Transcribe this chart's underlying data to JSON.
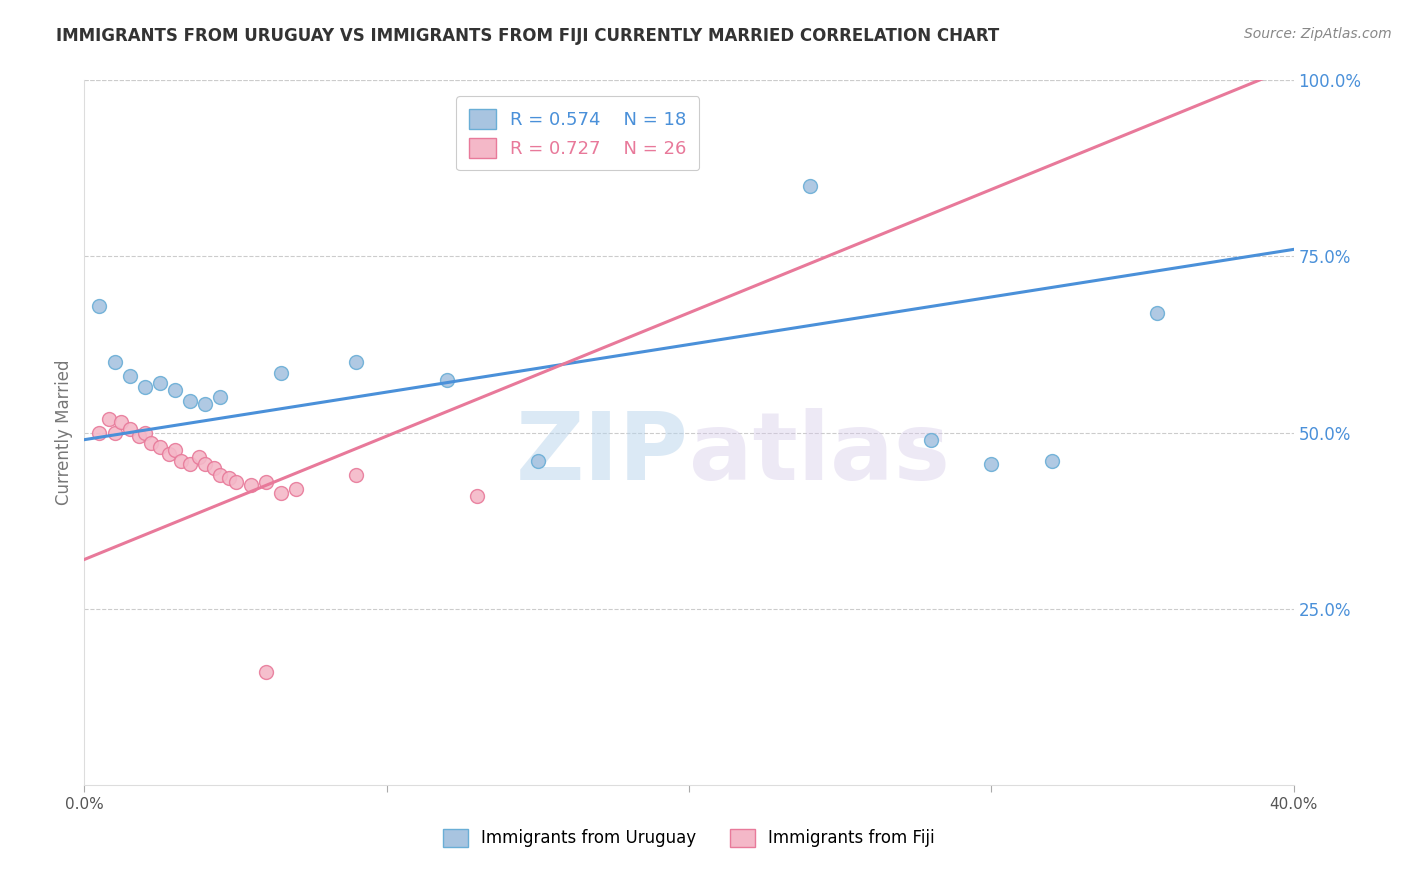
{
  "title": "IMMIGRANTS FROM URUGUAY VS IMMIGRANTS FROM FIJI CURRENTLY MARRIED CORRELATION CHART",
  "source_text": "Source: ZipAtlas.com",
  "ylabel": "Currently Married",
  "watermark_zip": "ZIP",
  "watermark_atlas": "atlas",
  "xlim": [
    0.0,
    0.4
  ],
  "ylim": [
    0.0,
    1.0
  ],
  "xticks": [
    0.0,
    0.1,
    0.2,
    0.3,
    0.4
  ],
  "xtick_labels": [
    "0.0%",
    "",
    "",
    "",
    "40.0%"
  ],
  "ytick_labels_right": [
    "100.0%",
    "75.0%",
    "50.0%",
    "25.0%"
  ],
  "yticks_right": [
    1.0,
    0.75,
    0.5,
    0.25
  ],
  "uruguay_color": "#a8c4e0",
  "uruguay_edge": "#6aaed6",
  "fiji_color": "#f4b8c8",
  "fiji_edge": "#e87a9a",
  "uruguay_line_color": "#4a90d9",
  "fiji_line_color": "#e8799a",
  "R_uruguay": 0.574,
  "N_uruguay": 18,
  "R_fiji": 0.727,
  "N_fiji": 26,
  "uruguay_line_x0": 0.0,
  "uruguay_line_y0": 0.49,
  "uruguay_line_x1": 0.4,
  "uruguay_line_y1": 0.76,
  "fiji_line_x0": 0.0,
  "fiji_line_y0": 0.32,
  "fiji_line_x1": 0.4,
  "fiji_line_y1": 1.02,
  "uruguay_scatter_x": [
    0.005,
    0.01,
    0.015,
    0.02,
    0.025,
    0.03,
    0.035,
    0.04,
    0.045,
    0.065,
    0.09,
    0.12,
    0.15,
    0.28,
    0.32,
    0.355,
    0.24,
    0.3
  ],
  "uruguay_scatter_y": [
    0.68,
    0.6,
    0.58,
    0.565,
    0.57,
    0.56,
    0.545,
    0.54,
    0.55,
    0.585,
    0.6,
    0.575,
    0.46,
    0.49,
    0.46,
    0.67,
    0.85,
    0.455
  ],
  "fiji_scatter_x": [
    0.005,
    0.008,
    0.01,
    0.012,
    0.015,
    0.018,
    0.02,
    0.022,
    0.025,
    0.028,
    0.03,
    0.032,
    0.035,
    0.038,
    0.04,
    0.043,
    0.045,
    0.048,
    0.05,
    0.055,
    0.06,
    0.065,
    0.07,
    0.09,
    0.13,
    0.06
  ],
  "fiji_scatter_y": [
    0.5,
    0.52,
    0.5,
    0.515,
    0.505,
    0.495,
    0.5,
    0.485,
    0.48,
    0.47,
    0.475,
    0.46,
    0.455,
    0.465,
    0.455,
    0.45,
    0.44,
    0.435,
    0.43,
    0.425,
    0.43,
    0.415,
    0.42,
    0.44,
    0.41,
    0.16
  ],
  "grid_color": "#cccccc",
  "background_color": "#ffffff",
  "title_color": "#333333",
  "axis_label_color": "#888888",
  "right_tick_color": "#4a90d9",
  "legend_label1": "Immigrants from Uruguay",
  "legend_label2": "Immigrants from Fiji",
  "marker_size": 100
}
